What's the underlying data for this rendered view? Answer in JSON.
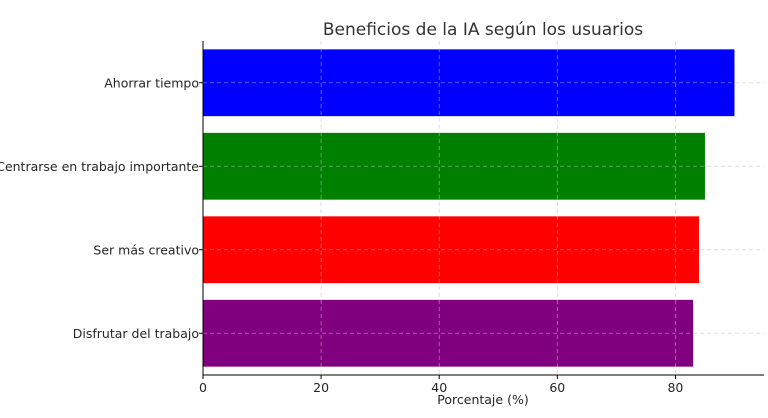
{
  "chart_data": {
    "type": "bar",
    "orientation": "horizontal",
    "title": "Beneficios de la IA según los usuarios",
    "xlabel": "Porcentaje (%)",
    "ylabel": "",
    "categories": [
      "Ahorrar tiempo",
      "Centrarse en trabajo importante",
      "Ser más creativo",
      "Disfrutar del trabajo"
    ],
    "values": [
      90,
      85,
      84,
      83
    ],
    "colors": [
      "#0000ff",
      "#008000",
      "#ff0000",
      "#800080"
    ],
    "xlim": [
      0,
      95
    ],
    "xticks": [
      0,
      20,
      40,
      60,
      80
    ],
    "grid": true
  }
}
